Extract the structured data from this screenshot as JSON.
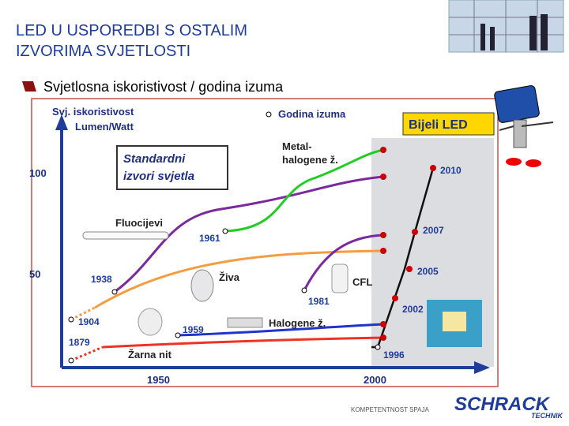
{
  "header": {
    "title_lines": [
      "LED U USPOREDBI S OSTALIM",
      "IZVORIMA SVJETLOSTI"
    ]
  },
  "bullet": "Svjetlosna iskoristivost / godina izuma",
  "diagram": {
    "y_axis_label": [
      "Svj. iskoristivost",
      "Lumen/Watt"
    ],
    "legend": "Godina izuma",
    "led_box": "Bijeli LED",
    "standard_box": [
      "Standardni",
      "izvori svjetla"
    ],
    "y_ticks": [
      "100",
      "50"
    ],
    "x_ticks": [
      "1950",
      "2000"
    ],
    "lamps": {
      "metal_halide": [
        "Metal-",
        "halogene ž."
      ],
      "fluorescent": "Fluocijevi",
      "mercury": "Živa",
      "cfl": "CFL",
      "halogen": "Halogene ž.",
      "incandescent": "Žarna nit"
    },
    "years": {
      "y1961": "1961",
      "y1938": "1938",
      "y1904": "1904",
      "y1879": "1879",
      "y1959": "1959",
      "y1981": "1981",
      "y1996": "1996",
      "y2002": "2002",
      "y2005": "2005",
      "y2007": "2007",
      "y2010": "2010"
    }
  },
  "footer": {
    "slogan": "KOMPETENTNOST SPAJA",
    "brand": "SCHRACK",
    "brand_sub": "TECHNIK"
  }
}
